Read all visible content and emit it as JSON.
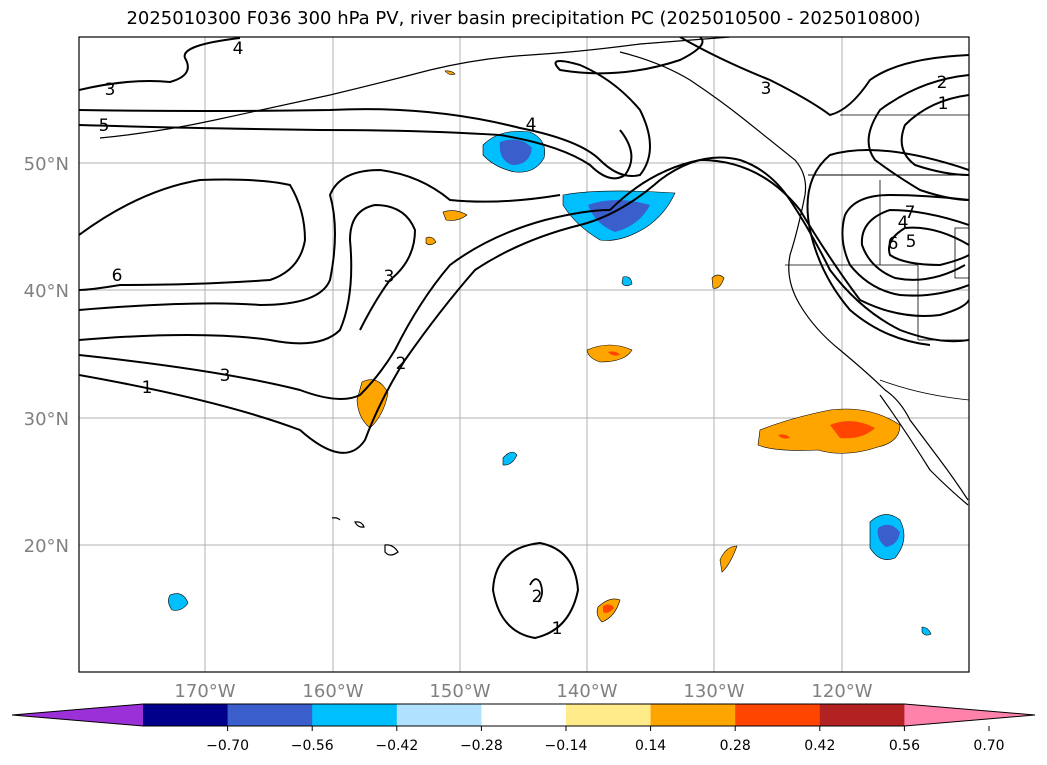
{
  "title": "2025010300 F036 300 hPa PV, river basin precipitation PC (2025010500 - 2025010800)",
  "map": {
    "lon_labels": [
      "170°W",
      "160°W",
      "150°W",
      "140°W",
      "130°W",
      "120°W"
    ],
    "lat_labels": [
      "50°N",
      "40°N",
      "30°N",
      "20°N"
    ],
    "gridlines": true,
    "pv_contour_labels": [
      "4",
      "3",
      "5",
      "6",
      "3",
      "2",
      "3",
      "1",
      "4",
      "3",
      "2",
      "1",
      "7",
      "6",
      "5",
      "4",
      "2",
      "1"
    ]
  },
  "colorbar": {
    "ticks": [
      "−0.70",
      "−0.56",
      "−0.42",
      "−0.28",
      "−0.14",
      "0.14",
      "0.28",
      "0.42",
      "0.56",
      "0.70"
    ],
    "colors": [
      "#9b30d8",
      "#00008b",
      "#3a5fcd",
      "#00bfff",
      "#b0e2ff",
      "#ffffff",
      "#ffeb8a",
      "#ffa500",
      "#ff4500",
      "#b22222",
      "#ff82ab"
    ],
    "extend": "both"
  }
}
